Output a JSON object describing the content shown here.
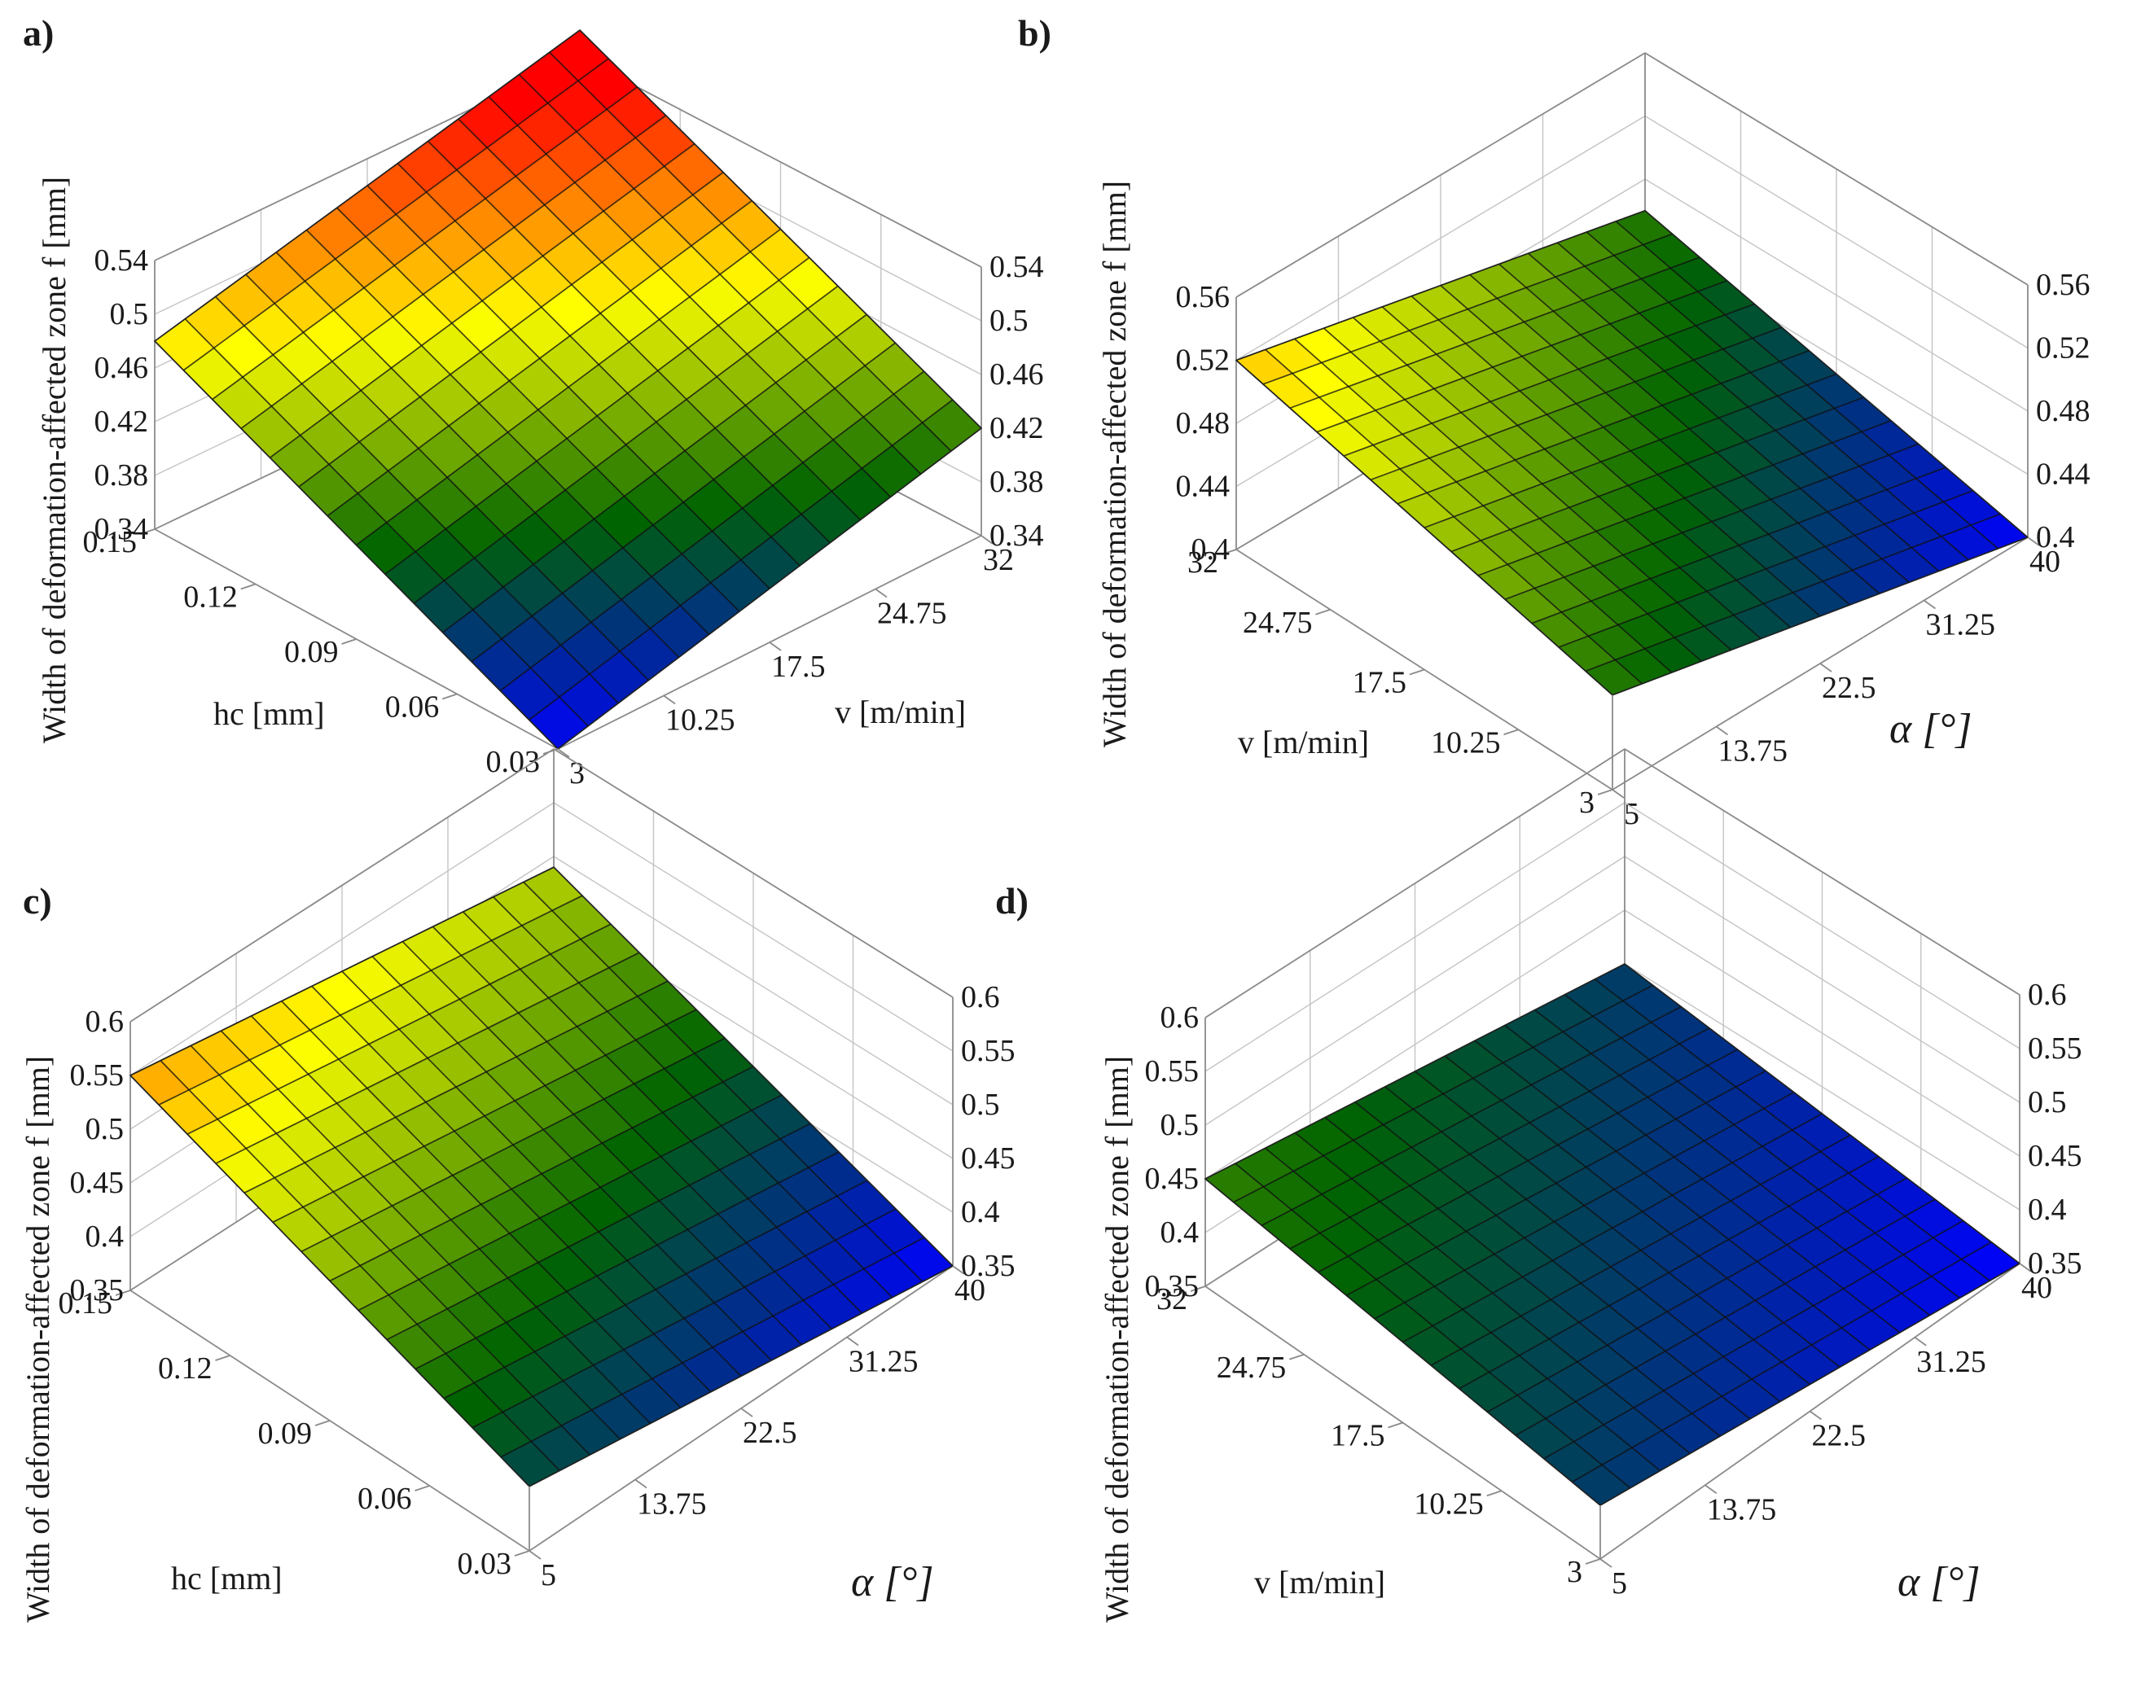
{
  "chart_data": [
    {
      "type": "surface",
      "panel": "a",
      "zlabel": "Width of deformation-affected zone f [mm]",
      "xlabel": "hc [mm]",
      "ylabel": "v [m/min]",
      "x_ticks": [
        "0.15",
        "0.12",
        "0.09",
        "0.06",
        "0.03"
      ],
      "y_ticks": [
        "3",
        "10.25",
        "17.5",
        "24.75",
        "32"
      ],
      "z_ticks_left": [
        "0.34",
        "0.38",
        "0.42",
        "0.46",
        "0.5",
        "0.54"
      ],
      "z_ticks_right": [
        "0.34",
        "0.38",
        "0.42",
        "0.46",
        "0.5",
        "0.54"
      ],
      "xlim": [
        0.03,
        0.15
      ],
      "ylim": [
        3,
        32
      ],
      "zlim": [
        0.34,
        0.54
      ],
      "corners": {
        "x_min_y_min": 0.34,
        "x_max_y_min": 0.48,
        "x_min_y_max": 0.42,
        "x_max_y_max": 0.56
      }
    },
    {
      "type": "surface",
      "panel": "b",
      "zlabel": "Width of deformation-affected zone f [mm]",
      "xlabel": "v [m/min]",
      "ylabel": "α [°]",
      "x_ticks": [
        "32",
        "24.75",
        "17.5",
        "10.25",
        "3"
      ],
      "y_ticks": [
        "5",
        "13.75",
        "22.5",
        "31.25",
        "40"
      ],
      "z_ticks_left": [
        "0.4",
        "0.44",
        "0.48",
        "0.52",
        "0.56"
      ],
      "z_ticks_right": [
        "0.4",
        "0.44",
        "0.48",
        "0.52",
        "0.56"
      ],
      "xlim": [
        3,
        32
      ],
      "ylim": [
        5,
        40
      ],
      "zlim": [
        0.4,
        0.56
      ],
      "corners": {
        "x_min_y_min": 0.46,
        "x_max_y_min": 0.52,
        "x_min_y_max": 0.4,
        "x_max_y_max": 0.46
      }
    },
    {
      "type": "surface",
      "panel": "c",
      "zlabel": "Width of deformation-affected zone f [mm]",
      "xlabel": "hc [mm]",
      "ylabel": "α [°]",
      "x_ticks": [
        "0.15",
        "0.12",
        "0.09",
        "0.06",
        "0.03"
      ],
      "y_ticks": [
        "5",
        "13.75",
        "22.5",
        "31.25",
        "40"
      ],
      "z_ticks_left": [
        "0.35",
        "0.4",
        "0.45",
        "0.5",
        "0.55",
        "0.6"
      ],
      "z_ticks_right": [
        "0.35",
        "0.4",
        "0.45",
        "0.5",
        "0.55",
        "0.6"
      ],
      "xlim": [
        0.03,
        0.15
      ],
      "ylim": [
        5,
        40
      ],
      "zlim": [
        0.35,
        0.6
      ],
      "corners": {
        "x_min_y_min": 0.41,
        "x_max_y_min": 0.55,
        "x_min_y_max": 0.35,
        "x_max_y_max": 0.49
      }
    },
    {
      "type": "surface",
      "panel": "d",
      "zlabel": "Width of deformation-affected zone f [mm]",
      "xlabel": "v [m/min]",
      "ylabel": "α [°]",
      "x_ticks": [
        "32",
        "24.75",
        "17.5",
        "10.25",
        "3"
      ],
      "y_ticks": [
        "5",
        "13.75",
        "22.5",
        "31.25",
        "40"
      ],
      "z_ticks_left": [
        "0.35",
        "0.4",
        "0.45",
        "0.5",
        "0.55",
        "0.6"
      ],
      "z_ticks_right": [
        "0.35",
        "0.4",
        "0.45",
        "0.5",
        "0.55",
        "0.6"
      ],
      "xlim": [
        3,
        32
      ],
      "ylim": [
        5,
        40
      ],
      "zlim": [
        0.35,
        0.6
      ],
      "corners": {
        "x_min_y_min": 0.4,
        "x_max_y_min": 0.45,
        "x_min_y_max": 0.35,
        "x_max_y_max": 0.4
      }
    }
  ],
  "panel_letters": [
    "a)",
    "b)",
    "c)",
    "d)"
  ],
  "colormap": [
    "#0000ff",
    "#006400",
    "#ffff00",
    "#ff0000"
  ]
}
